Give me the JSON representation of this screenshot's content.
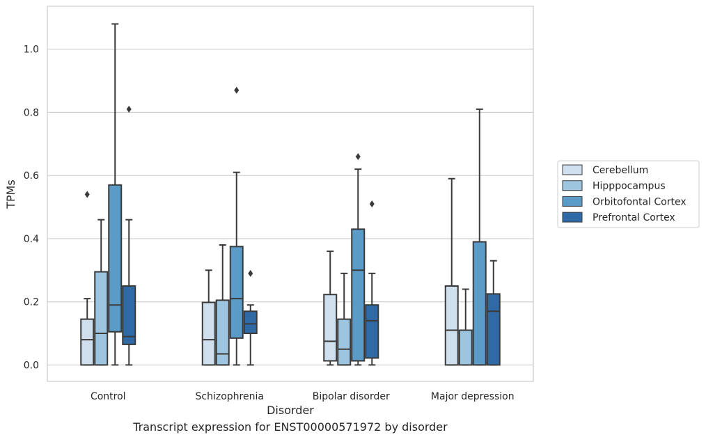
{
  "caption": "Transcript expression for ENST00000571972 by disorder",
  "chart_data": {
    "type": "boxplot",
    "title": "",
    "xlabel": "Disorder",
    "ylabel": "TPMs",
    "categories": [
      "Control",
      "Schizophrenia",
      "Bipolar disorder",
      "Major depression"
    ],
    "ylim": [
      -0.052,
      1.136
    ],
    "yticks": [
      0.0,
      0.2,
      0.4,
      0.6,
      0.8,
      1.0
    ],
    "ytick_labels": [
      "0.0",
      "0.2",
      "0.4",
      "0.6",
      "0.8",
      "1.0"
    ],
    "grid": "horizontal",
    "legend_position": "right",
    "series": [
      {
        "name": "Cerebellum",
        "color": "#cfdfee",
        "boxes": [
          {
            "q1": 0.0,
            "median": 0.08,
            "q3": 0.145,
            "whisker_low": 0.0,
            "whisker_high": 0.21,
            "outliers": [
              0.54
            ]
          },
          {
            "q1": 0.0,
            "median": 0.08,
            "q3": 0.198,
            "whisker_low": 0.0,
            "whisker_high": 0.3,
            "outliers": []
          },
          {
            "q1": 0.013,
            "median": 0.075,
            "q3": 0.223,
            "whisker_low": 0.0,
            "whisker_high": 0.36,
            "outliers": []
          },
          {
            "q1": 0.0,
            "median": 0.11,
            "q3": 0.25,
            "whisker_low": 0.0,
            "whisker_high": 0.59,
            "outliers": []
          }
        ]
      },
      {
        "name": "Hipppocampus",
        "color": "#9dc5df",
        "boxes": [
          {
            "q1": 0.0,
            "median": 0.1,
            "q3": 0.295,
            "whisker_low": 0.0,
            "whisker_high": 0.46,
            "outliers": []
          },
          {
            "q1": 0.0,
            "median": 0.035,
            "q3": 0.205,
            "whisker_low": 0.0,
            "whisker_high": 0.38,
            "outliers": []
          },
          {
            "q1": 0.0,
            "median": 0.05,
            "q3": 0.145,
            "whisker_low": 0.0,
            "whisker_high": 0.29,
            "outliers": []
          },
          {
            "q1": 0.0,
            "median": 0.11,
            "q3": 0.11,
            "whisker_low": 0.0,
            "whisker_high": 0.24,
            "outliers": []
          }
        ]
      },
      {
        "name": "Orbitofontal Cortex",
        "color": "#5b9bc8",
        "boxes": [
          {
            "q1": 0.105,
            "median": 0.19,
            "q3": 0.57,
            "whisker_low": 0.0,
            "whisker_high": 1.08,
            "outliers": []
          },
          {
            "q1": 0.085,
            "median": 0.21,
            "q3": 0.375,
            "whisker_low": 0.0,
            "whisker_high": 0.61,
            "outliers": [
              0.87
            ]
          },
          {
            "q1": 0.013,
            "median": 0.3,
            "q3": 0.43,
            "whisker_low": 0.0,
            "whisker_high": 0.62,
            "outliers": [
              0.66
            ]
          },
          {
            "q1": 0.0,
            "median": 0.39,
            "q3": 0.39,
            "whisker_low": 0.0,
            "whisker_high": 0.81,
            "outliers": []
          }
        ]
      },
      {
        "name": "Prefrontal Cortex",
        "color": "#2f6aa6",
        "boxes": [
          {
            "q1": 0.065,
            "median": 0.09,
            "q3": 0.25,
            "whisker_low": 0.0,
            "whisker_high": 0.46,
            "outliers": [
              0.81
            ]
          },
          {
            "q1": 0.1,
            "median": 0.13,
            "q3": 0.17,
            "whisker_low": 0.0,
            "whisker_high": 0.19,
            "outliers": [
              0.29
            ]
          },
          {
            "q1": 0.022,
            "median": 0.14,
            "q3": 0.19,
            "whisker_low": 0.0,
            "whisker_high": 0.29,
            "outliers": [
              0.51
            ]
          },
          {
            "q1": 0.0,
            "median": 0.17,
            "q3": 0.225,
            "whisker_low": 0.0,
            "whisker_high": 0.33,
            "outliers": []
          }
        ]
      }
    ]
  }
}
